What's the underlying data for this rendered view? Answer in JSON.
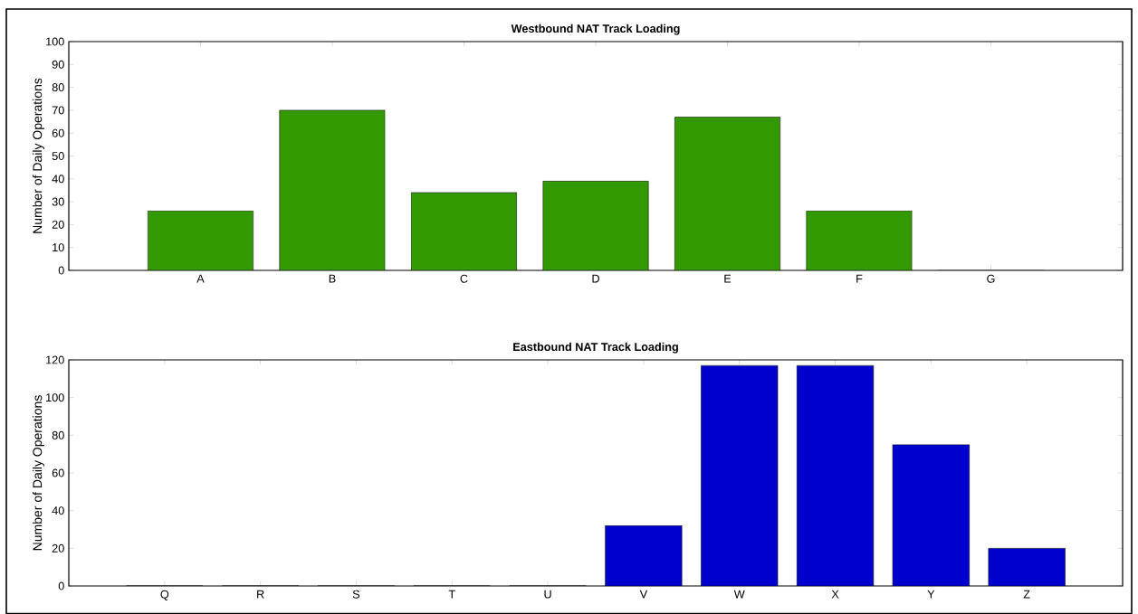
{
  "chart_data": [
    {
      "type": "bar",
      "title": "Westbound NAT Track Loading",
      "ylabel": "Number of Daily Operations",
      "categories": [
        "A",
        "B",
        "C",
        "D",
        "E",
        "F",
        "G"
      ],
      "values": [
        26,
        70,
        34,
        39,
        67,
        26,
        0
      ],
      "color": "#339900",
      "ylim": [
        0,
        100
      ],
      "yticks": [
        0,
        10,
        20,
        30,
        40,
        50,
        60,
        70,
        80,
        90,
        100
      ]
    },
    {
      "type": "bar",
      "title": "Eastbound NAT Track Loading",
      "ylabel": "Number of Daily Operations",
      "categories": [
        "Q",
        "R",
        "S",
        "T",
        "U",
        "V",
        "W",
        "X",
        "Y",
        "Z"
      ],
      "values": [
        0,
        0,
        0,
        0,
        0,
        32,
        117,
        117,
        75,
        20
      ],
      "color": "#0000cc",
      "ylim": [
        0,
        120
      ],
      "yticks": [
        0,
        20,
        40,
        60,
        80,
        100,
        120
      ]
    }
  ]
}
